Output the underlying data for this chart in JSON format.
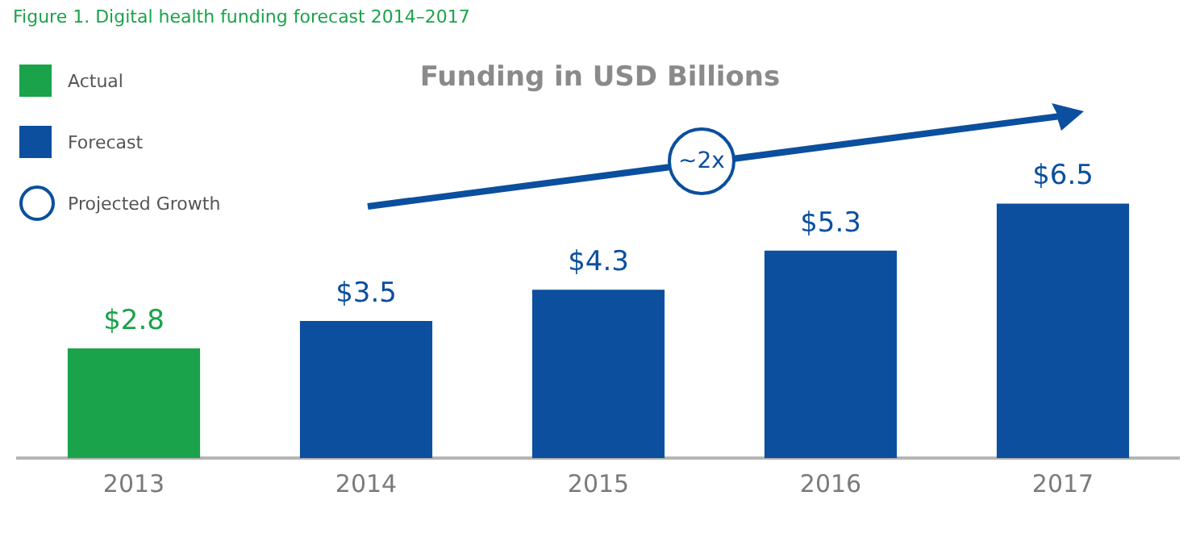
{
  "chart_data": {
    "type": "bar",
    "title": "Figure 1. Digital health funding forecast 2014–2017",
    "subtitle": "Funding in USD Billions",
    "categories": [
      "2013",
      "2014",
      "2015",
      "2016",
      "2017"
    ],
    "series": [
      {
        "name": "Actual",
        "color": "#1aa34a",
        "values": [
          2.8,
          null,
          null,
          null,
          null
        ],
        "value_labels": [
          "$2.8",
          null,
          null,
          null,
          null
        ]
      },
      {
        "name": "Forecast",
        "color": "#0b4f9e",
        "values": [
          null,
          3.5,
          4.3,
          5.3,
          6.5
        ],
        "value_labels": [
          null,
          "$3.5",
          "$4.3",
          "$5.3",
          "$6.5"
        ]
      }
    ],
    "annotations": [
      "~2x",
      "Projected Growth"
    ],
    "legend": "top left",
    "grid": false
  }
}
